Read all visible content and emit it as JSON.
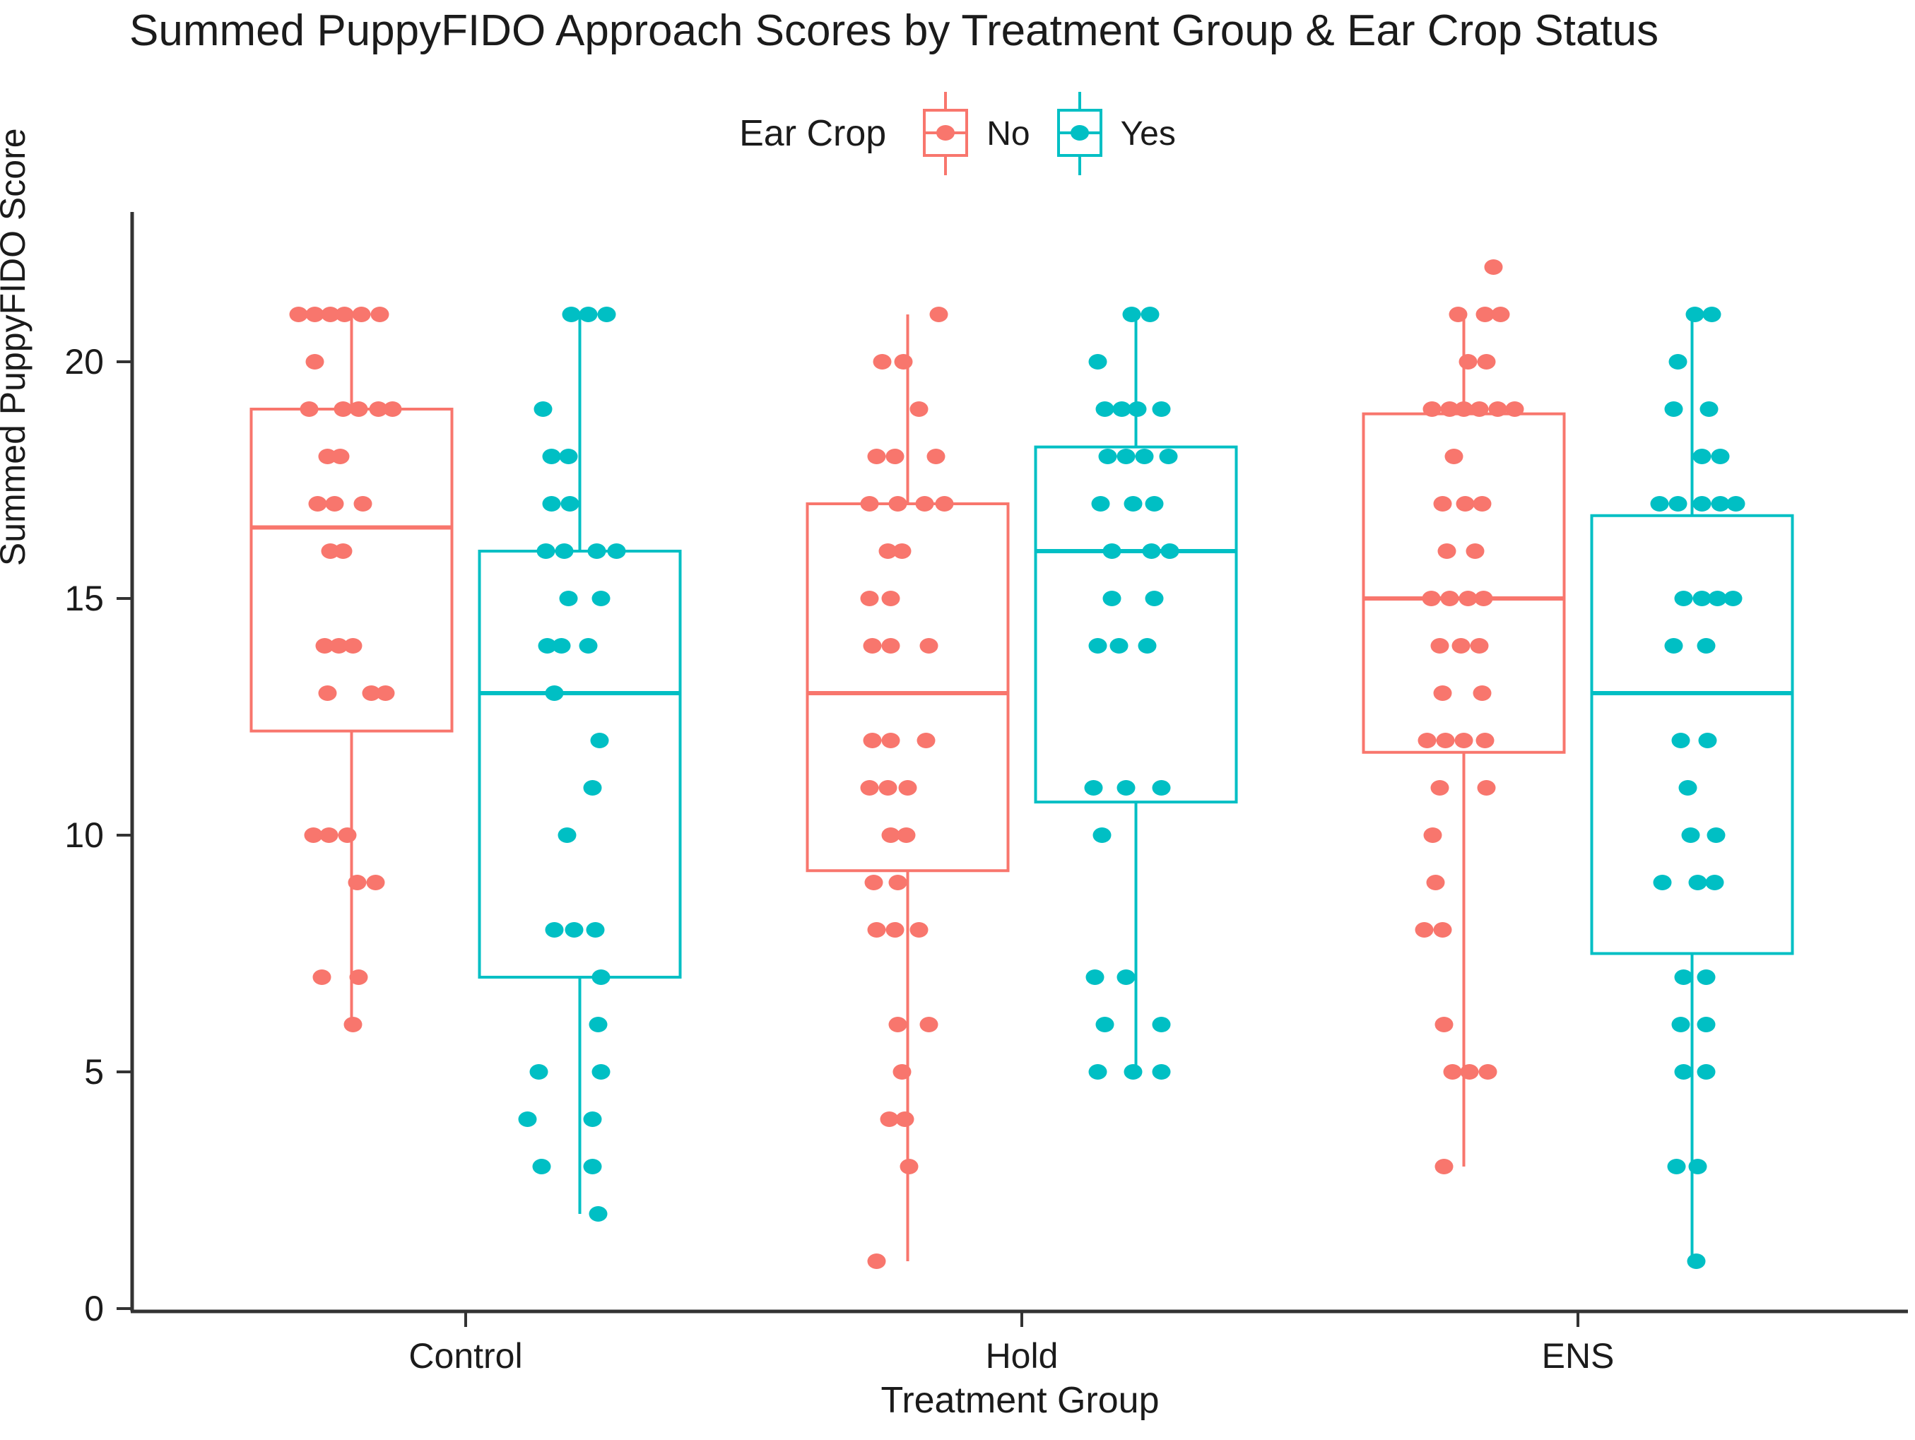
{
  "chart": {
    "title": "Summed PuppyFIDO Approach Scores by Treatment Group & Ear Crop Status",
    "legend_title": "Ear Crop",
    "xlabel": "Treatment Group",
    "ylabel": "Summed PuppyFIDO Score"
  },
  "chart_data": {
    "type": "boxplot_jitter",
    "title": "Summed PuppyFIDO Approach Scores by Treatment Group & Ear Crop Status",
    "xlabel": "Treatment Group",
    "ylabel": "Summed PuppyFIDO Score",
    "categories": [
      "Control",
      "Hold",
      "ENS"
    ],
    "y_ticks": [
      0,
      5,
      10,
      15,
      20
    ],
    "ylim": [
      0,
      23
    ],
    "grid": "off",
    "legend_position": "top-center",
    "legend": [
      {
        "label": "No",
        "color": "#F8766D"
      },
      {
        "label": "Yes",
        "color": "#00BFC4"
      }
    ],
    "series": [
      {
        "group": "Control",
        "ear_crop": "No",
        "box": {
          "q1": 12.2,
          "median": 16.5,
          "q3": 19,
          "whisker_low": 6,
          "whisker_high": 21
        },
        "points": [
          {
            "y": 21,
            "dx": [
              -75,
              -52,
              -30,
              -10,
              14,
              40
            ]
          },
          {
            "y": 20,
            "dx": [
              -52
            ]
          },
          {
            "y": 19,
            "dx": [
              -60,
              -12,
              10,
              38,
              58
            ]
          },
          {
            "y": 18,
            "dx": [
              -34,
              -16
            ]
          },
          {
            "y": 17,
            "dx": [
              -48,
              -24,
              16
            ]
          },
          {
            "y": 16,
            "dx": [
              -30,
              -12
            ]
          },
          {
            "y": 14,
            "dx": [
              -38,
              -18,
              2
            ]
          },
          {
            "y": 13,
            "dx": [
              -34,
              28,
              48
            ]
          },
          {
            "y": 10,
            "dx": [
              -54,
              -32,
              -6
            ]
          },
          {
            "y": 9,
            "dx": [
              8,
              34
            ]
          },
          {
            "y": 7,
            "dx": [
              -42,
              10
            ]
          },
          {
            "y": 6,
            "dx": [
              2
            ]
          }
        ]
      },
      {
        "group": "Control",
        "ear_crop": "Yes",
        "box": {
          "q1": 7,
          "median": 13,
          "q3": 16,
          "whisker_low": 2,
          "whisker_high": 21
        },
        "points": [
          {
            "y": 21,
            "dx": [
              -12,
              12,
              38
            ]
          },
          {
            "y": 19,
            "dx": [
              -52
            ]
          },
          {
            "y": 18,
            "dx": [
              -40,
              -16
            ]
          },
          {
            "y": 17,
            "dx": [
              -40,
              -14
            ]
          },
          {
            "y": 16,
            "dx": [
              -48,
              -22,
              24,
              52
            ]
          },
          {
            "y": 15,
            "dx": [
              -16,
              30
            ]
          },
          {
            "y": 14,
            "dx": [
              -46,
              -26,
              12
            ]
          },
          {
            "y": 13,
            "dx": [
              -36
            ]
          },
          {
            "y": 12,
            "dx": [
              28
            ]
          },
          {
            "y": 11,
            "dx": [
              18
            ]
          },
          {
            "y": 10,
            "dx": [
              -18
            ]
          },
          {
            "y": 8,
            "dx": [
              -36,
              -8,
              22
            ]
          },
          {
            "y": 7,
            "dx": [
              30
            ]
          },
          {
            "y": 6,
            "dx": [
              26
            ]
          },
          {
            "y": 5,
            "dx": [
              -58,
              30
            ]
          },
          {
            "y": 4,
            "dx": [
              -74,
              18
            ]
          },
          {
            "y": 3,
            "dx": [
              -54,
              18
            ]
          },
          {
            "y": 2,
            "dx": [
              26
            ]
          }
        ]
      },
      {
        "group": "Hold",
        "ear_crop": "No",
        "box": {
          "q1": 9.25,
          "median": 13,
          "q3": 17,
          "whisker_low": 1,
          "whisker_high": 21
        },
        "points": [
          {
            "y": 21,
            "dx": [
              44
            ]
          },
          {
            "y": 20,
            "dx": [
              -36,
              -6
            ]
          },
          {
            "y": 19,
            "dx": [
              16
            ]
          },
          {
            "y": 18,
            "dx": [
              -44,
              -18,
              40
            ]
          },
          {
            "y": 17,
            "dx": [
              -54,
              -14,
              24,
              52
            ]
          },
          {
            "y": 16,
            "dx": [
              -28,
              -8
            ]
          },
          {
            "y": 15,
            "dx": [
              -54,
              -24
            ]
          },
          {
            "y": 14,
            "dx": [
              -50,
              -24,
              30
            ]
          },
          {
            "y": 12,
            "dx": [
              -50,
              -24,
              26
            ]
          },
          {
            "y": 11,
            "dx": [
              -54,
              -28,
              0
            ]
          },
          {
            "y": 10,
            "dx": [
              -24,
              -2
            ]
          },
          {
            "y": 9,
            "dx": [
              -48,
              -14
            ]
          },
          {
            "y": 8,
            "dx": [
              -44,
              -18,
              16
            ]
          },
          {
            "y": 6,
            "dx": [
              -14,
              30
            ]
          },
          {
            "y": 5,
            "dx": [
              -8
            ]
          },
          {
            "y": 4,
            "dx": [
              -26,
              -4
            ]
          },
          {
            "y": 3,
            "dx": [
              2
            ]
          },
          {
            "y": 1,
            "dx": [
              -44
            ]
          }
        ]
      },
      {
        "group": "Hold",
        "ear_crop": "Yes",
        "box": {
          "q1": 10.7,
          "median": 16,
          "q3": 18.2,
          "whisker_low": 5,
          "whisker_high": 21
        },
        "points": [
          {
            "y": 21,
            "dx": [
              -6,
              20
            ]
          },
          {
            "y": 20,
            "dx": [
              -54
            ]
          },
          {
            "y": 19,
            "dx": [
              -44,
              -20,
              2,
              36
            ]
          },
          {
            "y": 18,
            "dx": [
              -40,
              -14,
              12,
              46
            ]
          },
          {
            "y": 17,
            "dx": [
              -50,
              -4,
              26
            ]
          },
          {
            "y": 16,
            "dx": [
              -34,
              22,
              48
            ]
          },
          {
            "y": 15,
            "dx": [
              -34,
              26
            ]
          },
          {
            "y": 14,
            "dx": [
              -54,
              -24,
              16
            ]
          },
          {
            "y": 11,
            "dx": [
              -60,
              -14,
              36
            ]
          },
          {
            "y": 10,
            "dx": [
              -48
            ]
          },
          {
            "y": 7,
            "dx": [
              -58,
              -14
            ]
          },
          {
            "y": 6,
            "dx": [
              -44,
              36
            ]
          },
          {
            "y": 5,
            "dx": [
              -54,
              -4,
              36
            ]
          }
        ]
      },
      {
        "group": "ENS",
        "ear_crop": "No",
        "box": {
          "q1": 11.75,
          "median": 15,
          "q3": 18.9,
          "whisker_low": 3,
          "whisker_high": 21
        },
        "points": [
          {
            "y": 22,
            "dx": [
              42
            ]
          },
          {
            "y": 21,
            "dx": [
              -8,
              30,
              52
            ]
          },
          {
            "y": 20,
            "dx": [
              6,
              32
            ]
          },
          {
            "y": 19,
            "dx": [
              -45,
              -20,
              0,
              22,
              48,
              72
            ]
          },
          {
            "y": 18,
            "dx": [
              -14
            ]
          },
          {
            "y": 17,
            "dx": [
              -30,
              2,
              26
            ]
          },
          {
            "y": 16,
            "dx": [
              -24,
              16
            ]
          },
          {
            "y": 15,
            "dx": [
              -46,
              -20,
              6,
              28
            ]
          },
          {
            "y": 14,
            "dx": [
              -34,
              -4,
              22
            ]
          },
          {
            "y": 13,
            "dx": [
              -30,
              26
            ]
          },
          {
            "y": 12,
            "dx": [
              -52,
              -26,
              0,
              30
            ]
          },
          {
            "y": 11,
            "dx": [
              -34,
              32
            ]
          },
          {
            "y": 10,
            "dx": [
              -44
            ]
          },
          {
            "y": 9,
            "dx": [
              -40
            ]
          },
          {
            "y": 8,
            "dx": [
              -56,
              -30
            ]
          },
          {
            "y": 6,
            "dx": [
              -28
            ]
          },
          {
            "y": 5,
            "dx": [
              -16,
              8,
              34
            ]
          },
          {
            "y": 3,
            "dx": [
              -28
            ]
          }
        ]
      },
      {
        "group": "ENS",
        "ear_crop": "Yes",
        "box": {
          "q1": 7.5,
          "median": 13,
          "q3": 16.75,
          "whisker_low": 1,
          "whisker_high": 21
        },
        "points": [
          {
            "y": 21,
            "dx": [
              4,
              28
            ]
          },
          {
            "y": 20,
            "dx": [
              -20
            ]
          },
          {
            "y": 19,
            "dx": [
              -26,
              24
            ]
          },
          {
            "y": 18,
            "dx": [
              14,
              40
            ]
          },
          {
            "y": 17,
            "dx": [
              -46,
              -20,
              14,
              40,
              62
            ]
          },
          {
            "y": 15,
            "dx": [
              -12,
              14,
              36,
              58
            ]
          },
          {
            "y": 14,
            "dx": [
              -26,
              20
            ]
          },
          {
            "y": 12,
            "dx": [
              -16,
              22
            ]
          },
          {
            "y": 11,
            "dx": [
              -6
            ]
          },
          {
            "y": 10,
            "dx": [
              -2,
              34
            ]
          },
          {
            "y": 9,
            "dx": [
              -42,
              8,
              32
            ]
          },
          {
            "y": 7,
            "dx": [
              -12,
              20
            ]
          },
          {
            "y": 6,
            "dx": [
              -16,
              20
            ]
          },
          {
            "y": 5,
            "dx": [
              -12,
              20
            ]
          },
          {
            "y": 3,
            "dx": [
              -22,
              8
            ]
          },
          {
            "y": 1,
            "dx": [
              6
            ]
          }
        ]
      }
    ]
  }
}
